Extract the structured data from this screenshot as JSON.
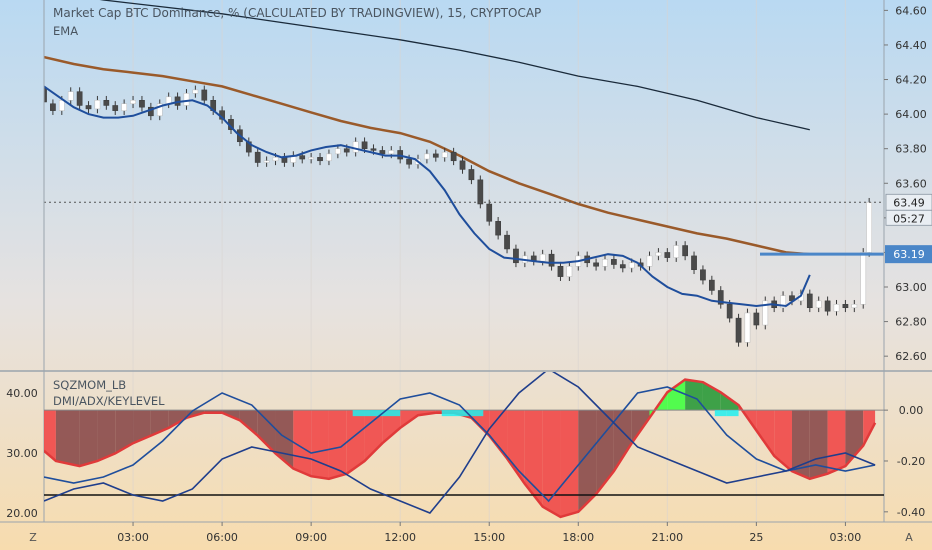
{
  "header": {
    "symbol_title": "Market Cap BTC Dominance, % (CALCULATED BY TRADINGVIEW), 15, CRYPTOCAP",
    "indicator_ema": "EMA"
  },
  "lower_pane": {
    "indicator_sqzmom": "SQZMOM_LB",
    "indicator_dmi": "DMI/ADX/KEYLEVEL"
  },
  "price_badges": {
    "current_price": "63.49",
    "countdown": "05:27",
    "ema_value": "63.19"
  },
  "bottom_bar": {
    "left_button": "Z",
    "right_button": "A"
  },
  "colors": {
    "up_candle": "#ffffff",
    "down_candle": "#4a4a4a",
    "ema_fast": "#1f4e9c",
    "ema_mid": "#9a5a2a",
    "ema_slow": "#1a2a3a",
    "price_badge": "#4a86c8",
    "hist_red": "#f04848",
    "hist_dark": "#8a4a4a",
    "hist_green": "#2a9a3a",
    "hist_lime": "#40ff40",
    "hist_cyan": "#20f0f0"
  },
  "chart_data": [
    {
      "type": "candlestick",
      "title": "Market Cap BTC Dominance, % (CALCULATED BY TRADINGVIEW), 15, CRYPTOCAP",
      "y_ticks": [
        "64.60",
        "64.40",
        "64.20",
        "64.00",
        "63.80",
        "63.60",
        "63.40",
        "63.20",
        "63.00",
        "62.80",
        "62.60"
      ],
      "ylim": [
        62.52,
        64.66
      ],
      "x_ticks": [
        "03:00",
        "06:00",
        "09:00",
        "12:00",
        "15:00",
        "18:00",
        "21:00",
        "25",
        "03:00"
      ],
      "x_tick_hours": [
        3,
        6,
        9,
        12,
        15,
        18,
        21,
        24,
        27
      ],
      "xlim_hours": [
        0,
        28.3
      ],
      "current_price": 63.49,
      "ema_last": 63.19,
      "ema_slow": {
        "x": [
          0,
          2,
          4,
          6,
          8,
          10,
          12,
          14,
          16,
          18,
          20,
          22,
          24,
          25.8
        ],
        "y": [
          64.72,
          64.66,
          64.62,
          64.58,
          64.53,
          64.48,
          64.43,
          64.37,
          64.3,
          64.22,
          64.16,
          64.08,
          63.98,
          63.91
        ]
      },
      "ema_mid": {
        "x": [
          0,
          1,
          2,
          3,
          4,
          5,
          6,
          7,
          8,
          9,
          10,
          11,
          12,
          13,
          14,
          15,
          16,
          17,
          18,
          19,
          20,
          21,
          22,
          23,
          24,
          25,
          25.8
        ],
        "y": [
          64.33,
          64.29,
          64.26,
          64.24,
          64.22,
          64.19,
          64.16,
          64.11,
          64.06,
          64.01,
          63.96,
          63.92,
          63.89,
          63.84,
          63.76,
          63.67,
          63.6,
          63.54,
          63.48,
          63.43,
          63.39,
          63.35,
          63.31,
          63.28,
          63.24,
          63.2,
          63.19
        ]
      },
      "ema_fast": {
        "x": [
          0,
          0.5,
          1,
          1.5,
          2,
          2.5,
          3,
          3.5,
          4,
          4.5,
          5,
          5.5,
          6,
          6.5,
          7,
          7.5,
          8,
          8.5,
          9,
          9.5,
          10,
          10.5,
          11,
          11.5,
          12,
          12.5,
          13,
          13.5,
          14,
          14.5,
          15,
          15.5,
          16,
          16.5,
          17,
          17.5,
          18,
          18.5,
          19,
          19.5,
          20,
          20.5,
          21,
          21.5,
          22,
          22.5,
          23,
          23.5,
          24,
          24.5,
          25,
          25.5,
          25.8
        ],
        "y": [
          64.16,
          64.1,
          64.04,
          64.0,
          63.98,
          63.98,
          63.99,
          64.02,
          64.05,
          64.07,
          64.08,
          64.05,
          63.98,
          63.89,
          63.82,
          63.78,
          63.75,
          63.76,
          63.79,
          63.81,
          63.82,
          63.8,
          63.78,
          63.76,
          63.76,
          63.74,
          63.67,
          63.56,
          63.42,
          63.31,
          63.22,
          63.17,
          63.16,
          63.15,
          63.14,
          63.14,
          63.15,
          63.17,
          63.19,
          63.18,
          63.14,
          63.06,
          63.0,
          62.96,
          62.95,
          62.92,
          62.91,
          62.9,
          62.89,
          62.9,
          62.89,
          62.95,
          63.07
        ]
      },
      "candles": [
        [
          0.0,
          64.15,
          64.07
        ],
        [
          0.3,
          64.06,
          64.02
        ],
        [
          0.6,
          64.02,
          64.08
        ],
        [
          0.9,
          64.08,
          64.13
        ],
        [
          1.2,
          64.13,
          64.05
        ],
        [
          1.5,
          64.05,
          64.03
        ],
        [
          1.8,
          64.03,
          64.08
        ],
        [
          2.1,
          64.08,
          64.05
        ],
        [
          2.4,
          64.05,
          64.02
        ],
        [
          2.7,
          64.02,
          64.06
        ],
        [
          3.0,
          64.06,
          64.08
        ],
        [
          3.3,
          64.08,
          64.04
        ],
        [
          3.6,
          64.04,
          63.99
        ],
        [
          3.9,
          63.99,
          64.06
        ],
        [
          4.2,
          64.06,
          64.1
        ],
        [
          4.5,
          64.1,
          64.05
        ],
        [
          4.8,
          64.05,
          64.12
        ],
        [
          5.1,
          64.12,
          64.14
        ],
        [
          5.4,
          64.14,
          64.08
        ],
        [
          5.7,
          64.08,
          64.02
        ],
        [
          6.0,
          64.02,
          63.97
        ],
        [
          6.3,
          63.97,
          63.91
        ],
        [
          6.6,
          63.91,
          63.84
        ],
        [
          6.9,
          63.84,
          63.78
        ],
        [
          7.2,
          63.78,
          63.72
        ],
        [
          7.5,
          63.72,
          63.73
        ],
        [
          7.8,
          63.73,
          63.75
        ],
        [
          8.1,
          63.75,
          63.72
        ],
        [
          8.4,
          63.72,
          63.76
        ],
        [
          8.7,
          63.76,
          63.74
        ],
        [
          9.0,
          63.74,
          63.75
        ],
        [
          9.3,
          63.75,
          63.73
        ],
        [
          9.6,
          63.73,
          63.77
        ],
        [
          9.9,
          63.77,
          63.8
        ],
        [
          10.2,
          63.8,
          63.78
        ],
        [
          10.5,
          63.78,
          63.84
        ],
        [
          10.8,
          63.84,
          63.8
        ],
        [
          11.1,
          63.8,
          63.79
        ],
        [
          11.4,
          63.79,
          63.77
        ],
        [
          11.7,
          63.77,
          63.79
        ],
        [
          12.0,
          63.79,
          63.74
        ],
        [
          12.3,
          63.74,
          63.71
        ],
        [
          12.6,
          63.71,
          63.74
        ],
        [
          12.9,
          63.74,
          63.77
        ],
        [
          13.2,
          63.77,
          63.75
        ],
        [
          13.5,
          63.75,
          63.78
        ],
        [
          13.8,
          63.78,
          63.73
        ],
        [
          14.1,
          63.73,
          63.68
        ],
        [
          14.4,
          63.68,
          63.62
        ],
        [
          14.7,
          63.62,
          63.48
        ],
        [
          15.0,
          63.48,
          63.38
        ],
        [
          15.3,
          63.38,
          63.3
        ],
        [
          15.6,
          63.3,
          63.22
        ],
        [
          15.9,
          63.22,
          63.14
        ],
        [
          16.2,
          63.14,
          63.18
        ],
        [
          16.5,
          63.18,
          63.15
        ],
        [
          16.8,
          63.15,
          63.19
        ],
        [
          17.1,
          63.19,
          63.12
        ],
        [
          17.4,
          63.12,
          63.06
        ],
        [
          17.7,
          63.06,
          63.12
        ],
        [
          18.0,
          63.12,
          63.18
        ],
        [
          18.3,
          63.18,
          63.14
        ],
        [
          18.6,
          63.14,
          63.12
        ],
        [
          18.9,
          63.12,
          63.16
        ],
        [
          19.2,
          63.16,
          63.13
        ],
        [
          19.5,
          63.13,
          63.11
        ],
        [
          19.8,
          63.11,
          63.14
        ],
        [
          20.1,
          63.14,
          63.12
        ],
        [
          20.4,
          63.12,
          63.18
        ],
        [
          20.7,
          63.18,
          63.2
        ],
        [
          21.0,
          63.2,
          63.17
        ],
        [
          21.3,
          63.17,
          63.24
        ],
        [
          21.6,
          63.24,
          63.18
        ],
        [
          21.9,
          63.18,
          63.1
        ],
        [
          22.2,
          63.1,
          63.04
        ],
        [
          22.5,
          63.04,
          62.98
        ],
        [
          22.8,
          62.98,
          62.9
        ],
        [
          23.1,
          62.9,
          62.82
        ],
        [
          23.4,
          62.82,
          62.68
        ],
        [
          23.7,
          62.68,
          62.85
        ],
        [
          24.0,
          62.85,
          62.78
        ],
        [
          24.3,
          62.78,
          62.92
        ],
        [
          24.6,
          62.92,
          62.88
        ],
        [
          24.9,
          62.88,
          62.95
        ],
        [
          25.2,
          62.95,
          62.92
        ],
        [
          25.5,
          62.92,
          62.96
        ],
        [
          25.8,
          62.96,
          62.88
        ],
        [
          26.1,
          62.88,
          62.92
        ],
        [
          26.4,
          62.92,
          62.86
        ],
        [
          26.7,
          62.86,
          62.9
        ],
        [
          27.0,
          62.9,
          62.88
        ],
        [
          27.3,
          62.88,
          62.9
        ],
        [
          27.6,
          62.9,
          63.2
        ],
        [
          27.8,
          63.2,
          63.49
        ]
      ]
    },
    {
      "type": "area",
      "title": "SQZMOM_LB",
      "y_ticks": [
        "0.00",
        "-0.20",
        "-0.40"
      ],
      "ylim": [
        -0.44,
        0.15
      ],
      "momentum": {
        "x": [
          0,
          0.4,
          1.2,
          1.8,
          2.4,
          3.0,
          3.6,
          4.2,
          4.8,
          5.4,
          6.0,
          6.6,
          7.2,
          7.8,
          8.4,
          9.0,
          9.6,
          10.2,
          10.8,
          11.4,
          12.0,
          12.6,
          13.2,
          13.8,
          14.4,
          15.0,
          15.6,
          16.2,
          16.8,
          17.4,
          18.0,
          18.6,
          19.2,
          19.8,
          20.4,
          21.0,
          21.6,
          22.2,
          22.8,
          23.4,
          24.0,
          24.6,
          25.2,
          25.8,
          26.4,
          27.0,
          27.6,
          28.0
        ],
        "y": [
          -0.16,
          -0.2,
          -0.22,
          -0.2,
          -0.17,
          -0.13,
          -0.1,
          -0.07,
          -0.03,
          -0.01,
          -0.01,
          -0.04,
          -0.1,
          -0.17,
          -0.23,
          -0.26,
          -0.27,
          -0.25,
          -0.2,
          -0.13,
          -0.07,
          -0.02,
          -0.01,
          -0.01,
          -0.03,
          -0.1,
          -0.19,
          -0.29,
          -0.38,
          -0.42,
          -0.4,
          -0.33,
          -0.24,
          -0.13,
          -0.03,
          0.07,
          0.12,
          0.11,
          0.07,
          0.02,
          -0.08,
          -0.18,
          -0.24,
          -0.27,
          -0.25,
          -0.22,
          -0.14,
          -0.05
        ]
      }
    },
    {
      "type": "line",
      "title": "DMI/ADX/KEYLEVEL",
      "y_ticks": [
        "40.00",
        "30.00",
        "20.00"
      ],
      "ylim": [
        18.5,
        43.5
      ],
      "key_level": 23,
      "adx_line_1": {
        "x": [
          0,
          1,
          2,
          3,
          4,
          5,
          6,
          7,
          8,
          9,
          10,
          11,
          12,
          13,
          14,
          15,
          16,
          17,
          18,
          19,
          20,
          21,
          22,
          23,
          24,
          25,
          26,
          27,
          28
        ],
        "y": [
          26,
          25,
          26,
          28,
          32,
          37,
          40,
          38,
          33,
          30,
          31,
          35,
          39,
          40,
          38,
          33,
          27,
          22,
          28,
          34,
          40,
          41,
          39,
          33,
          29,
          27,
          28,
          27,
          28
        ]
      },
      "adx_line_2": {
        "x": [
          0,
          1,
          2,
          3,
          4,
          5,
          6,
          7,
          8,
          9,
          10,
          11,
          12,
          13,
          14,
          15,
          16,
          17,
          18,
          19,
          20,
          21,
          22,
          23,
          24,
          25,
          26,
          27,
          28
        ],
        "y": [
          22,
          24,
          25,
          23,
          22,
          24,
          29,
          31,
          30,
          29,
          27,
          24,
          22,
          20,
          26,
          34,
          40,
          44,
          41,
          36,
          31,
          29,
          27,
          25,
          26,
          27,
          29,
          30,
          28
        ]
      }
    }
  ]
}
